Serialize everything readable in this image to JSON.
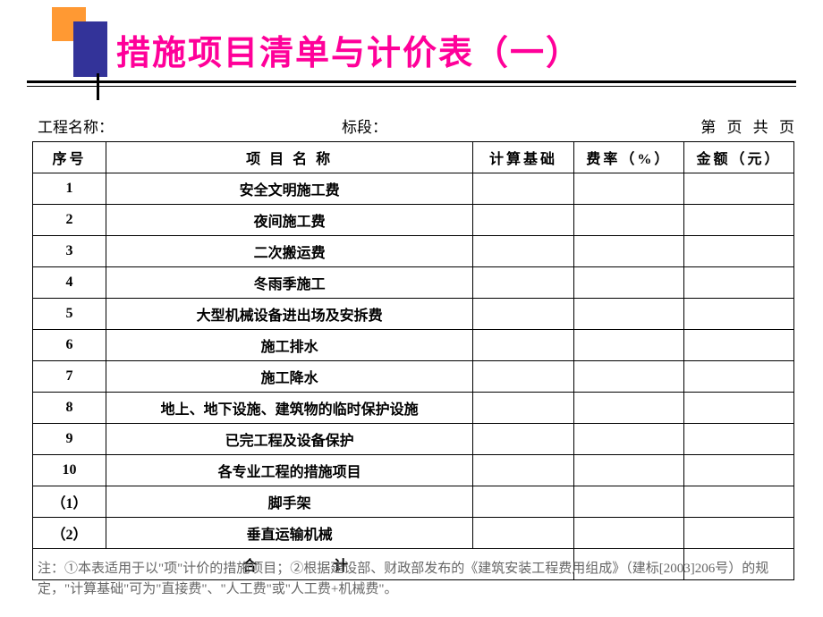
{
  "title": "措施项目清单与计价表（一）",
  "info": {
    "project_name_label": "工程名称：",
    "section_label": "标段：",
    "page_label": "第  页 共    页"
  },
  "table": {
    "columns": [
      "序号",
      "项 目 名 称",
      "计算基础",
      "费率（%）",
      "金额（元）"
    ],
    "rows": [
      {
        "seq": "1",
        "name": "安全文明施工费",
        "basis": "",
        "rate": "",
        "amount": ""
      },
      {
        "seq": "2",
        "name": "夜间施工费",
        "basis": "",
        "rate": "",
        "amount": ""
      },
      {
        "seq": "3",
        "name": "二次搬运费",
        "basis": "",
        "rate": "",
        "amount": ""
      },
      {
        "seq": "4",
        "name": "冬雨季施工",
        "basis": "",
        "rate": "",
        "amount": ""
      },
      {
        "seq": "5",
        "name": "大型机械设备进出场及安拆费",
        "basis": "",
        "rate": "",
        "amount": ""
      },
      {
        "seq": "6",
        "name": "施工排水",
        "basis": "",
        "rate": "",
        "amount": ""
      },
      {
        "seq": "7",
        "name": "施工降水",
        "basis": "",
        "rate": "",
        "amount": ""
      },
      {
        "seq": "8",
        "name": "地上、地下设施、建筑物的临时保护设施",
        "basis": "",
        "rate": "",
        "amount": ""
      },
      {
        "seq": "9",
        "name": "已完工程及设备保护",
        "basis": "",
        "rate": "",
        "amount": ""
      },
      {
        "seq": "10",
        "name": "各专业工程的措施项目",
        "basis": "",
        "rate": "",
        "amount": ""
      },
      {
        "seq": "（1）",
        "name": "脚手架",
        "basis": "",
        "rate": "",
        "amount": ""
      },
      {
        "seq": "（2）",
        "name": "垂直运输机械",
        "basis": "",
        "rate": "",
        "amount": ""
      }
    ],
    "total_label": "合　　计"
  },
  "footnote": "注：①本表适用于以\"项\"计价的措施项目；②根据建设部、财政部发布的《建筑安装工程费用组成》（建标[2003]206号）的规定，\"计算基础\"可为\"直接费\"、\"人工费\"或\"人工费+机械费\"。",
  "colors": {
    "title_color": "#ff0099",
    "orange": "#ff9933",
    "purple": "#333399",
    "border": "#000000",
    "footnote": "#666666",
    "background": "#ffffff"
  }
}
